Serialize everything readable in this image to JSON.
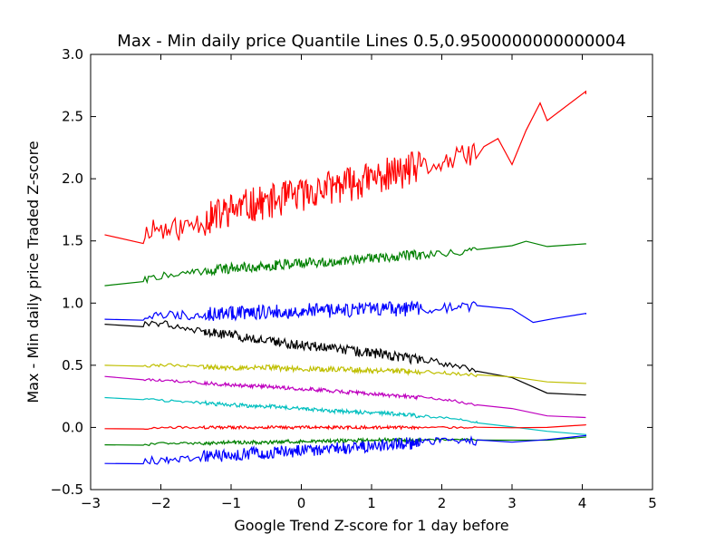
{
  "chart_data": {
    "type": "line",
    "title": "Max - Min daily price Quantile Lines 0.5,0.9500000000000004",
    "xlabel": "Google Trend Z-score for 1 day before",
    "ylabel": "Max - Min daily price Traded Z-score",
    "xlim": [
      -3,
      5
    ],
    "ylim": [
      -0.5,
      3.0
    ],
    "xticks": [
      -3,
      -2,
      -1,
      0,
      1,
      2,
      3,
      4,
      5
    ],
    "yticks": [
      -0.5,
      0.0,
      0.5,
      1.0,
      1.5,
      2.0,
      2.5,
      3.0
    ],
    "xtick_labels": [
      "−3",
      "−2",
      "−1",
      "0",
      "1",
      "2",
      "3",
      "4",
      "5"
    ],
    "ytick_labels": [
      "−0.5",
      "0.0",
      "0.5",
      "1.0",
      "1.5",
      "2.0",
      "2.5",
      "3.0"
    ],
    "grid": false,
    "series": [
      {
        "color": "#ff0000",
        "x": [
          -2.8,
          -2.25,
          -2.15,
          -1.9,
          -1.7,
          -1.5,
          -1.2,
          -1.0,
          -0.8,
          -0.6,
          -0.4,
          -0.2,
          0.0,
          0.2,
          0.4,
          0.6,
          0.8,
          1.0,
          1.2,
          1.4,
          1.6,
          1.8,
          2.0,
          2.2,
          2.4,
          2.6,
          2.8,
          3.0,
          3.2,
          3.4,
          3.5,
          4.05
        ],
        "y": [
          1.55,
          1.53,
          1.62,
          1.58,
          1.6,
          1.65,
          1.7,
          1.75,
          1.78,
          1.8,
          1.82,
          1.85,
          1.87,
          1.9,
          1.93,
          1.95,
          1.97,
          2.0,
          2.03,
          2.05,
          2.08,
          2.1,
          2.13,
          2.15,
          2.2,
          2.25,
          2.3,
          2.1,
          2.35,
          2.6,
          2.5,
          2.68
        ],
        "noise": 0.14,
        "seed": 11
      },
      {
        "color": "#008000",
        "x": [
          -2.8,
          -2.3,
          -2.0,
          -1.5,
          -1.0,
          -0.5,
          0.0,
          0.5,
          1.0,
          1.5,
          2.0,
          2.5,
          3.0,
          3.2,
          3.5,
          4.05
        ],
        "y": [
          1.14,
          1.18,
          1.22,
          1.25,
          1.28,
          1.3,
          1.32,
          1.34,
          1.36,
          1.38,
          1.4,
          1.42,
          1.45,
          1.5,
          1.45,
          1.48
        ],
        "noise": 0.04,
        "seed": 22
      },
      {
        "color": "#0000ff",
        "x": [
          -2.8,
          -2.3,
          -2.0,
          -1.5,
          -1.0,
          -0.5,
          0.0,
          0.5,
          1.0,
          1.5,
          2.0,
          2.5,
          3.0,
          3.3,
          3.6,
          4.05
        ],
        "y": [
          0.87,
          0.88,
          0.9,
          0.91,
          0.92,
          0.93,
          0.94,
          0.94,
          0.95,
          0.95,
          0.96,
          0.97,
          0.95,
          0.85,
          0.86,
          0.91
        ],
        "noise": 0.06,
        "seed": 33
      },
      {
        "color": "#000000",
        "x": [
          -2.8,
          -2.3,
          -2.0,
          -1.5,
          -1.0,
          -0.5,
          0.0,
          0.5,
          1.0,
          1.5,
          2.0,
          2.5,
          3.0,
          3.5,
          4.05
        ],
        "y": [
          0.83,
          0.82,
          0.84,
          0.78,
          0.74,
          0.7,
          0.66,
          0.63,
          0.6,
          0.56,
          0.52,
          0.45,
          0.4,
          0.27,
          0.26
        ],
        "noise": 0.04,
        "seed": 44
      },
      {
        "color": "#bfbf00",
        "x": [
          -2.8,
          -2.3,
          -2.0,
          -1.5,
          -1.0,
          -0.5,
          0.0,
          0.5,
          1.0,
          1.5,
          2.0,
          2.5,
          3.0,
          3.5,
          4.05
        ],
        "y": [
          0.5,
          0.5,
          0.5,
          0.49,
          0.48,
          0.48,
          0.47,
          0.47,
          0.46,
          0.45,
          0.44,
          0.42,
          0.4,
          0.36,
          0.35
        ],
        "noise": 0.022,
        "seed": 55
      },
      {
        "color": "#bf00bf",
        "x": [
          -2.8,
          -2.3,
          -2.0,
          -1.5,
          -1.0,
          -0.5,
          0.0,
          0.5,
          1.0,
          1.5,
          2.0,
          2.5,
          3.0,
          3.5,
          4.05
        ],
        "y": [
          0.41,
          0.39,
          0.38,
          0.36,
          0.34,
          0.33,
          0.31,
          0.29,
          0.27,
          0.25,
          0.23,
          0.18,
          0.15,
          0.09,
          0.08
        ],
        "noise": 0.015,
        "seed": 66
      },
      {
        "color": "#00bfbf",
        "x": [
          -2.8,
          -2.3,
          -2.0,
          -1.5,
          -1.0,
          -0.5,
          0.0,
          0.5,
          1.0,
          1.5,
          2.0,
          2.5,
          3.0,
          3.5,
          4.05
        ],
        "y": [
          0.24,
          0.23,
          0.22,
          0.2,
          0.18,
          0.17,
          0.15,
          0.13,
          0.12,
          0.1,
          0.08,
          0.04,
          0.0,
          -0.03,
          -0.06
        ],
        "noise": 0.016,
        "seed": 77
      },
      {
        "color": "#ff0000",
        "x": [
          -2.8,
          -2.3,
          -2.0,
          -1.5,
          -1.0,
          -0.5,
          0.0,
          0.5,
          1.0,
          1.5,
          2.0,
          2.5,
          3.0,
          3.5,
          4.05
        ],
        "y": [
          -0.01,
          -0.01,
          0.0,
          0.0,
          0.0,
          0.0,
          0.0,
          0.0,
          0.0,
          0.0,
          0.0,
          0.0,
          0.0,
          0.0,
          0.02
        ],
        "noise": 0.012,
        "seed": 88
      },
      {
        "color": "#008000",
        "x": [
          -2.8,
          -2.3,
          -2.0,
          -1.5,
          -1.0,
          -0.5,
          0.0,
          0.5,
          1.0,
          1.5,
          2.0,
          2.5,
          3.0,
          3.5,
          4.05
        ],
        "y": [
          -0.14,
          -0.14,
          -0.13,
          -0.13,
          -0.12,
          -0.12,
          -0.11,
          -0.11,
          -0.1,
          -0.1,
          -0.1,
          -0.1,
          -0.1,
          -0.1,
          -0.08
        ],
        "noise": 0.015,
        "seed": 99
      },
      {
        "color": "#0000ff",
        "x": [
          -2.8,
          -2.3,
          -2.0,
          -1.5,
          -1.0,
          -0.5,
          0.0,
          0.5,
          1.0,
          1.5,
          2.0,
          2.5,
          3.0,
          3.5,
          4.05
        ],
        "y": [
          -0.29,
          -0.28,
          -0.26,
          -0.24,
          -0.22,
          -0.2,
          -0.19,
          -0.17,
          -0.15,
          -0.13,
          -0.11,
          -0.11,
          -0.12,
          -0.1,
          -0.07
        ],
        "noise": 0.05,
        "seed": 111
      }
    ]
  }
}
